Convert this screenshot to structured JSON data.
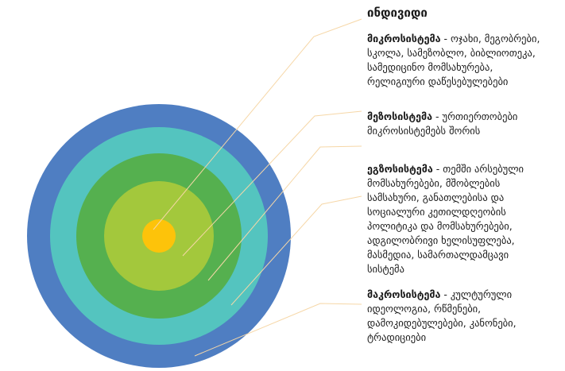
{
  "heading": "ინდივიდი",
  "colors": {
    "macro": "#4f7ec2",
    "exo": "#54c4bf",
    "meso": "#55b04f",
    "micro": "#a3c83c",
    "individual": "#fdc30a",
    "leader": "#f6d7a7"
  },
  "levels": [
    {
      "key": "micro",
      "title": "მიკროსისტემა",
      "separator": " - ",
      "description": "ოჯახი, მეგობრები,\nსკოლა, სამეზობლო, ბიბლიოთეკა,\nსამედიცინო მომსახურება,\nრელიგიური დაწესებულებები"
    },
    {
      "key": "meso",
      "title": "მეზოსისტემა",
      "separator": " - ",
      "description": "ურთიერთობები\nმიკროსისტემებს შორის"
    },
    {
      "key": "exo",
      "title": "ეგზოსისტემა",
      "separator": " - ",
      "description": "თემში არსებული\nმომსახურებები,  მშობლების\nსამსახური, განათლებისა და\nსოციალური კეთილდღეობის\nპოლიტიკა და მომსახურებები,\nადგილობრივი ხელისუფლება,\nმასმედია, სამართალდამცავი\nსისტემა"
    },
    {
      "key": "macro",
      "title": "მაკროსისტემა",
      "separator": " - ",
      "description": "კულტურული\nიდეოლოგია, რწმენები,\nდამოკიდებულებები, კანონები,\nტრადიციები"
    }
  ]
}
